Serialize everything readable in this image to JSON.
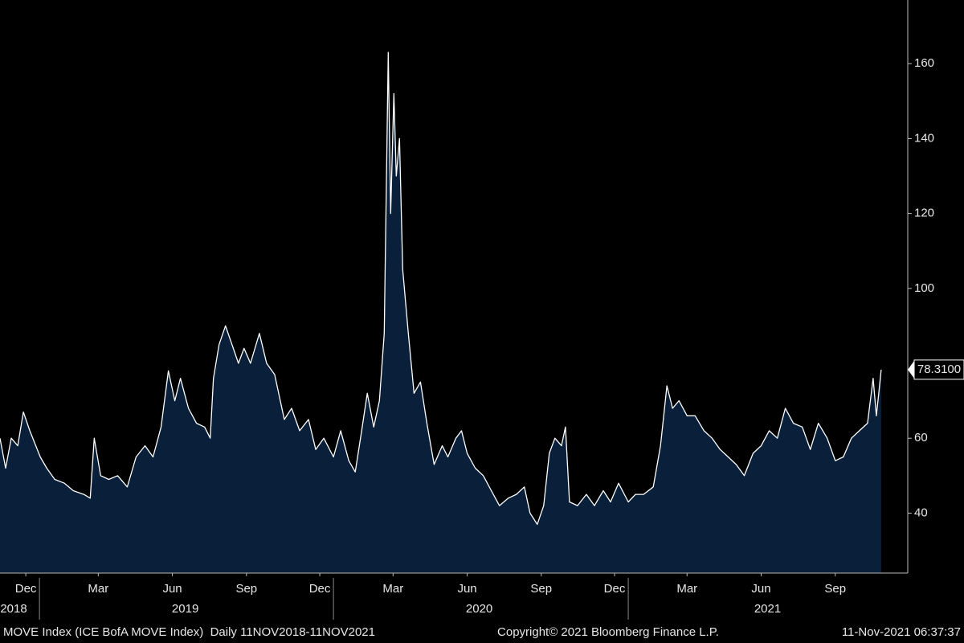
{
  "chart_data": {
    "type": "area",
    "x": [
      "2018-11-13",
      "2018-11-20",
      "2018-11-27",
      "2018-12-05",
      "2018-12-12",
      "2018-12-20",
      "2019-01-02",
      "2019-01-10",
      "2019-01-20",
      "2019-02-01",
      "2019-02-12",
      "2019-02-25",
      "2019-03-05",
      "2019-03-10",
      "2019-03-18",
      "2019-03-28",
      "2019-04-08",
      "2019-04-20",
      "2019-05-01",
      "2019-05-12",
      "2019-05-22",
      "2019-06-01",
      "2019-06-10",
      "2019-06-18",
      "2019-06-25",
      "2019-07-05",
      "2019-07-15",
      "2019-07-25",
      "2019-08-01",
      "2019-08-05",
      "2019-08-12",
      "2019-08-20",
      "2019-08-28",
      "2019-09-05",
      "2019-09-12",
      "2019-09-20",
      "2019-10-01",
      "2019-10-10",
      "2019-10-20",
      "2019-11-01",
      "2019-11-10",
      "2019-11-20",
      "2019-12-01",
      "2019-12-10",
      "2019-12-20",
      "2020-01-01",
      "2020-01-10",
      "2020-01-20",
      "2020-01-28",
      "2020-02-05",
      "2020-02-12",
      "2020-02-20",
      "2020-02-27",
      "2020-03-04",
      "2020-03-09",
      "2020-03-12",
      "2020-03-16",
      "2020-03-19",
      "2020-03-23",
      "2020-03-27",
      "2020-04-03",
      "2020-04-10",
      "2020-04-18",
      "2020-04-26",
      "2020-05-05",
      "2020-05-15",
      "2020-05-22",
      "2020-06-01",
      "2020-06-08",
      "2020-06-15",
      "2020-06-25",
      "2020-07-05",
      "2020-07-15",
      "2020-07-25",
      "2020-08-05",
      "2020-08-15",
      "2020-08-25",
      "2020-09-01",
      "2020-09-10",
      "2020-09-18",
      "2020-09-25",
      "2020-10-02",
      "2020-10-10",
      "2020-10-15",
      "2020-10-20",
      "2020-10-30",
      "2020-11-10",
      "2020-11-20",
      "2020-12-01",
      "2020-12-10",
      "2020-12-20",
      "2021-01-01",
      "2021-01-10",
      "2021-01-20",
      "2021-02-01",
      "2021-02-10",
      "2021-02-18",
      "2021-02-25",
      "2021-03-05",
      "2021-03-15",
      "2021-03-25",
      "2021-04-05",
      "2021-04-15",
      "2021-04-25",
      "2021-05-05",
      "2021-05-15",
      "2021-05-25",
      "2021-06-05",
      "2021-06-15",
      "2021-06-25",
      "2021-07-05",
      "2021-07-15",
      "2021-07-25",
      "2021-08-05",
      "2021-08-15",
      "2021-08-25",
      "2021-09-05",
      "2021-09-15",
      "2021-09-25",
      "2021-10-05",
      "2021-10-15",
      "2021-10-25",
      "2021-11-01",
      "2021-11-05",
      "2021-11-08",
      "2021-11-11"
    ],
    "values": [
      60,
      52,
      60,
      58,
      67,
      62,
      55,
      52,
      49,
      48,
      46,
      45,
      44,
      60,
      50,
      49,
      50,
      47,
      55,
      58,
      55,
      63,
      78,
      70,
      76,
      68,
      64,
      63,
      60,
      76,
      85,
      90,
      85,
      80,
      84,
      80,
      88,
      80,
      77,
      65,
      68,
      62,
      65,
      57,
      60,
      55,
      62,
      54,
      51,
      62,
      72,
      63,
      70,
      88,
      163,
      120,
      152,
      130,
      140,
      105,
      88,
      72,
      75,
      64,
      53,
      58,
      55,
      60,
      62,
      56,
      52,
      50,
      46,
      42,
      44,
      45,
      47,
      40,
      37,
      42,
      56,
      60,
      58,
      63,
      43,
      42,
      45,
      42,
      46,
      43,
      48,
      43,
      45,
      45,
      47,
      58,
      74,
      68,
      70,
      66,
      66,
      62,
      60,
      57,
      55,
      53,
      50,
      56,
      58,
      62,
      60,
      68,
      64,
      63,
      57,
      64,
      60,
      54,
      55,
      60,
      62,
      64,
      76,
      66,
      72,
      78.31
    ],
    "color": "#0a1f3a",
    "line_color": "#ffffff",
    "xlim": [
      "2018-11-13",
      "2021-12-14"
    ],
    "ylim": [
      24,
      177
    ],
    "yticks": [
      40,
      60,
      100,
      120,
      140,
      160
    ],
    "xticks": [
      {
        "value": "2018-12-15",
        "label": "Dec"
      },
      {
        "value": "2019-03-15",
        "label": "Mar"
      },
      {
        "value": "2019-06-15",
        "label": "Jun"
      },
      {
        "value": "2019-09-15",
        "label": "Sep"
      },
      {
        "value": "2019-12-15",
        "label": "Dec"
      },
      {
        "value": "2020-03-15",
        "label": "Mar"
      },
      {
        "value": "2020-06-15",
        "label": "Jun"
      },
      {
        "value": "2020-09-15",
        "label": "Sep"
      },
      {
        "value": "2020-12-15",
        "label": "Dec"
      },
      {
        "value": "2021-03-15",
        "label": "Mar"
      },
      {
        "value": "2021-06-15",
        "label": "Jun"
      },
      {
        "value": "2021-09-15",
        "label": "Sep"
      }
    ],
    "year_labels": [
      {
        "value": "2018-11-30",
        "label": "2018"
      },
      {
        "value": "2019-07-01",
        "label": "2019"
      },
      {
        "value": "2020-06-30",
        "label": "2020"
      },
      {
        "value": "2021-06-23",
        "label": "2021"
      }
    ],
    "last_value_label": {
      "value": 78.31,
      "label": "78.3100"
    },
    "footer": {
      "series_info": "MOVE Index (ICE BofA MOVE Index)  Daily 11NOV2018-11NOV2021",
      "copyright": "Copyright© 2021 Bloomberg Finance L.P.",
      "timestamp": "11-Nov-2021 06:37:37"
    }
  }
}
